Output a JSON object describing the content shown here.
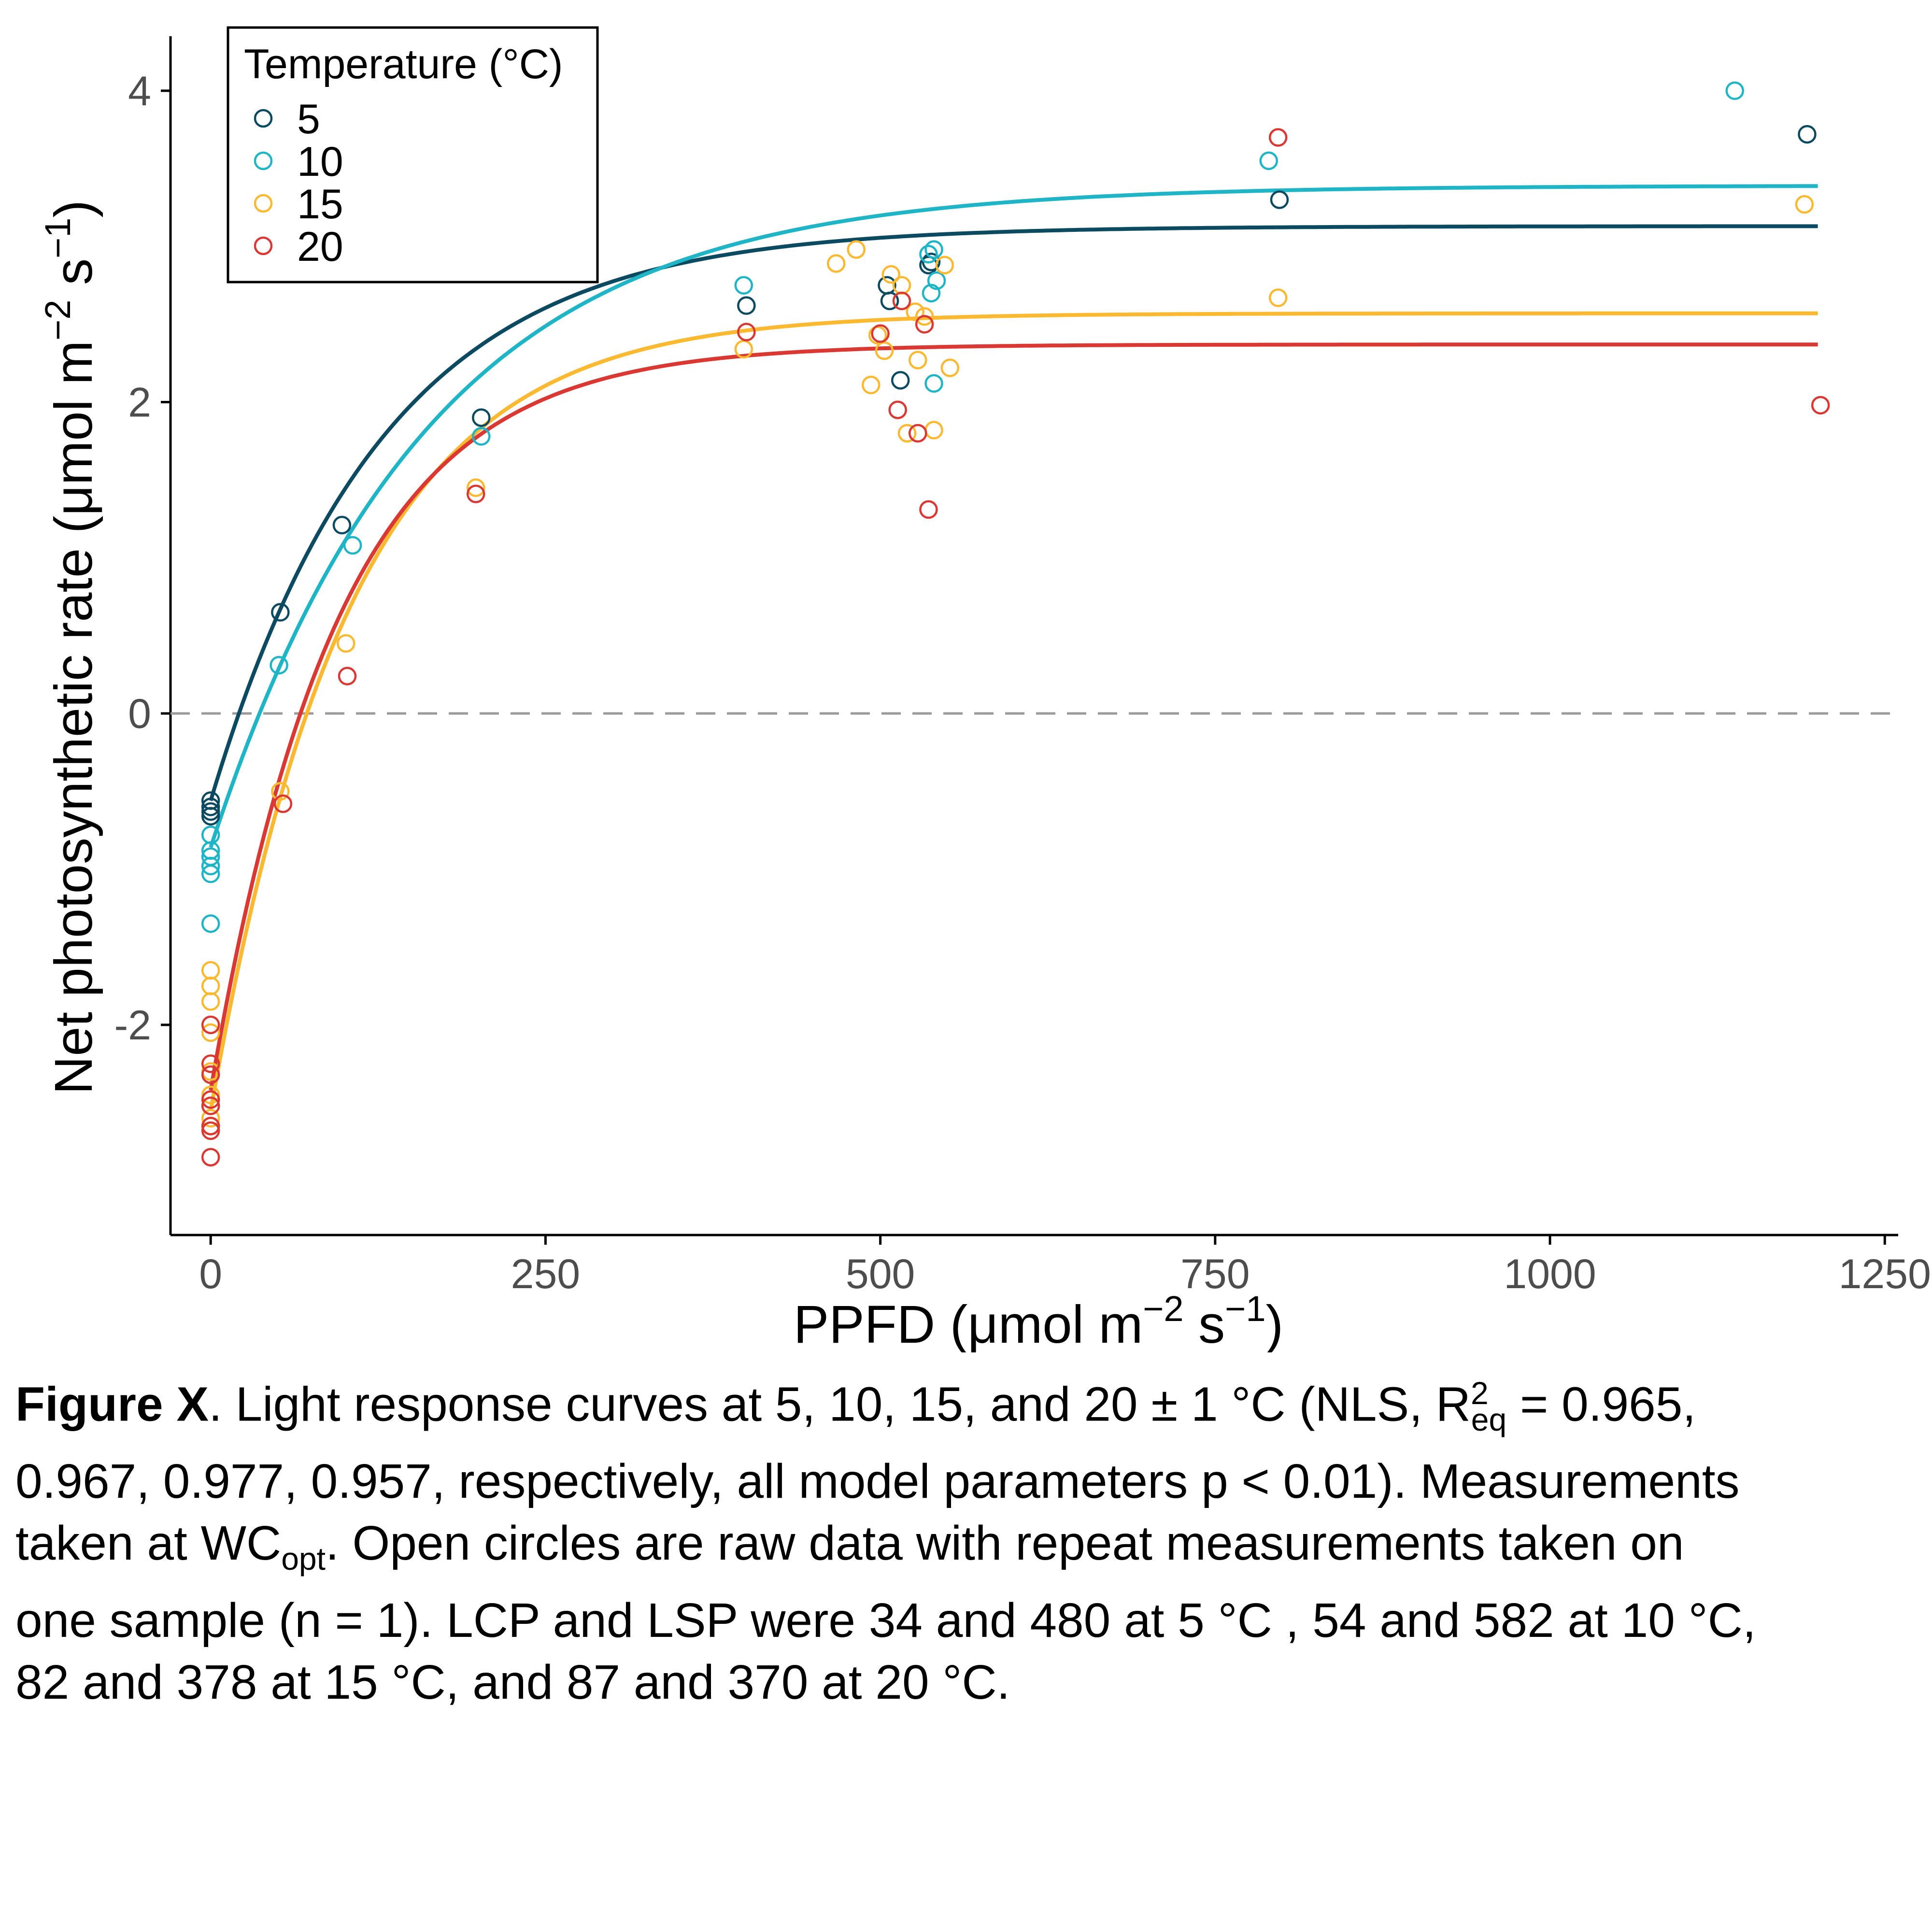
{
  "chart_data": {
    "type": "scatter",
    "xlabel": {
      "main": "PPFD (μmol m",
      "sup1": "−2",
      "mid": " s",
      "sup2": "−1",
      "end": ")"
    },
    "ylabel": {
      "main": "Net photosynthetic rate (μmol m",
      "sup1": "−2",
      "mid": " s",
      "sup2": "−1",
      "end": ")"
    },
    "xlim": [
      -30,
      1260
    ],
    "ylim": [
      -3.35,
      4.35
    ],
    "xticks": [
      0,
      250,
      500,
      750,
      1000,
      1250
    ],
    "xtick_labels": [
      "0",
      "250",
      "500",
      "750",
      "1000",
      "1250"
    ],
    "yticks": [
      -2,
      0,
      2,
      4
    ],
    "ytick_labels": [
      "-2",
      "0",
      "2",
      "4"
    ],
    "reference_line_y": 0,
    "grid": false,
    "legend": {
      "title": "Temperature (°C)",
      "position": "top-left"
    },
    "series": [
      {
        "name": "5",
        "color": "#0b4a61",
        "fit": {
          "amax": 3.13,
          "rd": 0.56,
          "k": 0.0078,
          "xmax": 1200
        },
        "points": [
          [
            0,
            -0.56
          ],
          [
            0,
            -0.6
          ],
          [
            0,
            -0.63
          ],
          [
            0,
            -0.66
          ],
          [
            52,
            0.65
          ],
          [
            98,
            1.21
          ],
          [
            202,
            1.9
          ],
          [
            400,
            2.62
          ],
          [
            505,
            2.75
          ],
          [
            507,
            2.65
          ],
          [
            515,
            2.14
          ],
          [
            536,
            2.88
          ],
          [
            538,
            2.9
          ],
          [
            798,
            3.3
          ],
          [
            1192,
            3.72
          ]
        ]
      },
      {
        "name": "10",
        "color": "#1fb5c6",
        "fit": {
          "amax": 3.39,
          "rd": 0.86,
          "k": 0.0062,
          "xmax": 1200
        },
        "points": [
          [
            0,
            -0.78
          ],
          [
            0,
            -0.88
          ],
          [
            0,
            -0.92
          ],
          [
            0,
            -0.98
          ],
          [
            0,
            -1.03
          ],
          [
            0,
            -1.35
          ],
          [
            51,
            0.31
          ],
          [
            106,
            1.08
          ],
          [
            202,
            1.78
          ],
          [
            398,
            2.75
          ],
          [
            536,
            2.95
          ],
          [
            538,
            2.7
          ],
          [
            540,
            2.98
          ],
          [
            542,
            2.78
          ],
          [
            540,
            2.12
          ],
          [
            790,
            3.55
          ],
          [
            1138,
            4.0
          ]
        ]
      },
      {
        "name": "15",
        "color": "#fbb931",
        "fit": {
          "amax": 2.57,
          "rd": 2.55,
          "k": 0.0096,
          "xmax": 1200
        },
        "points": [
          [
            0,
            -1.65
          ],
          [
            0,
            -1.75
          ],
          [
            0,
            -1.85
          ],
          [
            0,
            -2.05
          ],
          [
            0,
            -2.3
          ],
          [
            0,
            -2.45
          ],
          [
            0,
            -2.6
          ],
          [
            0,
            -2.65
          ],
          [
            52,
            -0.5
          ],
          [
            101,
            0.45
          ],
          [
            198,
            1.45
          ],
          [
            398,
            2.34
          ],
          [
            467,
            2.89
          ],
          [
            482,
            2.98
          ],
          [
            493,
            2.11
          ],
          [
            498,
            2.43
          ],
          [
            503,
            2.33
          ],
          [
            508,
            2.82
          ],
          [
            516,
            2.75
          ],
          [
            520,
            1.8
          ],
          [
            526,
            2.58
          ],
          [
            528,
            2.27
          ],
          [
            533,
            2.55
          ],
          [
            540,
            1.82
          ],
          [
            548,
            2.88
          ],
          [
            552,
            2.22
          ],
          [
            797,
            2.67
          ],
          [
            1190,
            3.27
          ]
        ]
      },
      {
        "name": "20",
        "color": "#d93833",
        "fit": {
          "amax": 2.37,
          "rd": 2.42,
          "k": 0.0105,
          "xmax": 1200
        },
        "points": [
          [
            0,
            -2.0
          ],
          [
            0,
            -2.25
          ],
          [
            0,
            -2.32
          ],
          [
            0,
            -2.48
          ],
          [
            0,
            -2.52
          ],
          [
            0,
            -2.65
          ],
          [
            0,
            -2.68
          ],
          [
            0,
            -2.85
          ],
          [
            54,
            -0.58
          ],
          [
            102,
            0.24
          ],
          [
            198,
            1.41
          ],
          [
            400,
            2.45
          ],
          [
            500,
            2.44
          ],
          [
            513,
            1.95
          ],
          [
            516,
            2.65
          ],
          [
            528,
            1.8
          ],
          [
            533,
            2.5
          ],
          [
            536,
            1.31
          ],
          [
            797,
            3.7
          ],
          [
            1202,
            1.98
          ]
        ]
      }
    ]
  },
  "caption": {
    "bold": "Figure X",
    "line1a": ". Light response curves at 5, 10, 15, and 20 ± 1 °C (NLS, R",
    "line1sup": "2",
    "line1sub": "eq",
    "line1b": " = 0.965,",
    "line2": "0.967, 0.977, 0.957, respectively, all model parameters p < 0.01). Measurements",
    "line3a": "taken at WC",
    "line3sub": "opt",
    "line3b": ". Open circles are raw data with repeat measurements taken on",
    "line4": "one sample (n = 1). LCP and LSP were 34 and 480 at 5 °C , 54 and 582 at 10 °C,",
    "line5": "82 and 378 at 15 °C, and 87 and 370 at 20 °C."
  }
}
